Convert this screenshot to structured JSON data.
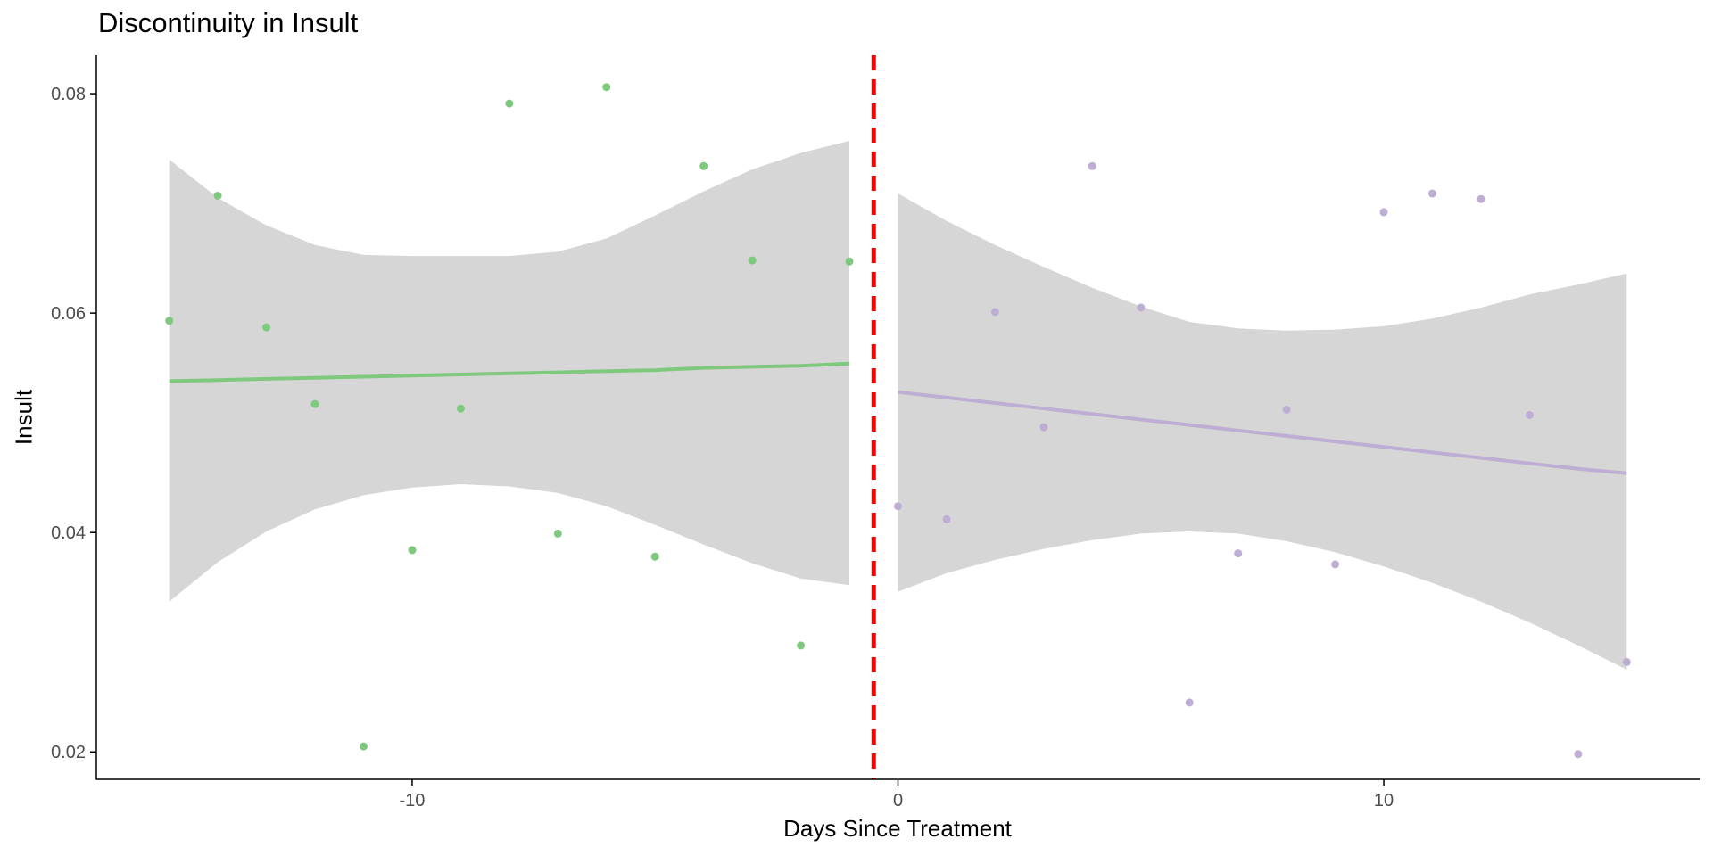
{
  "chart_data": {
    "type": "scatter",
    "title": "Discontinuity in Insult",
    "xlabel": "Days Since Treatment",
    "ylabel": "Insult",
    "xlim": [
      -16.5,
      16.5
    ],
    "ylim": [
      0.0175,
      0.0835
    ],
    "x_ticks": [
      -10,
      0,
      10
    ],
    "x_tick_labels": [
      "-10",
      "0",
      "10"
    ],
    "y_ticks": [
      0.02,
      0.04,
      0.06,
      0.08
    ],
    "y_tick_labels": [
      "0.02",
      "0.04",
      "0.06",
      "0.08"
    ],
    "grid": false,
    "cutoff": {
      "x": -0.5,
      "color": "#ff0000",
      "style": "dashed"
    },
    "series": [
      {
        "color": "#7fc97f",
        "x": [
          -15,
          -14,
          -13,
          -12,
          -11,
          -10,
          -9,
          -8,
          -7,
          -6,
          -5,
          -4,
          -3,
          -2,
          -1
        ],
        "y": [
          0.0593,
          0.0707,
          0.0587,
          0.0517,
          0.0205,
          0.0384,
          0.0513,
          0.0791,
          0.0399,
          0.0806,
          0.0378,
          0.0734,
          0.0648,
          0.0297,
          0.0647
        ],
        "fit": {
          "x": [
            -15,
            -14,
            -13,
            -12,
            -11,
            -10,
            -9,
            -8,
            -7,
            -6,
            -5,
            -4,
            -3,
            -2,
            -1
          ],
          "y": [
            0.0538,
            0.0539,
            0.054,
            0.0541,
            0.0542,
            0.0543,
            0.0544,
            0.0545,
            0.0546,
            0.0547,
            0.0548,
            0.055,
            0.0551,
            0.0552,
            0.0554
          ],
          "lower": [
            0.0337,
            0.0373,
            0.0401,
            0.0421,
            0.0434,
            0.0441,
            0.0444,
            0.0442,
            0.0436,
            0.0424,
            0.0407,
            0.0389,
            0.0372,
            0.0358,
            0.0352
          ],
          "upper": [
            0.074,
            0.0705,
            0.068,
            0.0662,
            0.0653,
            0.0652,
            0.0652,
            0.0652,
            0.0656,
            0.0668,
            0.0689,
            0.0711,
            0.0731,
            0.0746,
            0.0757
          ]
        }
      },
      {
        "color": "#beaed4",
        "x": [
          0,
          1,
          2,
          3,
          4,
          5,
          6,
          7,
          8,
          9,
          10,
          11,
          12,
          13,
          14,
          15
        ],
        "y": [
          0.0424,
          0.0412,
          0.0601,
          0.0496,
          0.0734,
          0.0605,
          0.0245,
          0.0381,
          0.0512,
          0.0371,
          0.0692,
          0.0709,
          0.0704,
          0.0507,
          0.0198,
          0.0282
        ],
        "fit": {
          "x": [
            0,
            1,
            2,
            3,
            4,
            5,
            6,
            7,
            8,
            9,
            10,
            11,
            12,
            13,
            14,
            15
          ],
          "y": [
            0.0528,
            0.0523,
            0.0518,
            0.0513,
            0.0508,
            0.0503,
            0.0498,
            0.0493,
            0.0488,
            0.0483,
            0.0478,
            0.0473,
            0.0468,
            0.0463,
            0.0458,
            0.0454
          ],
          "lower": [
            0.0346,
            0.0363,
            0.0375,
            0.0385,
            0.0393,
            0.0399,
            0.0401,
            0.0399,
            0.0392,
            0.0382,
            0.0369,
            0.0354,
            0.0337,
            0.0318,
            0.0297,
            0.0275
          ],
          "upper": [
            0.0709,
            0.0684,
            0.0662,
            0.0642,
            0.0623,
            0.0606,
            0.0592,
            0.0586,
            0.0584,
            0.0585,
            0.0588,
            0.0595,
            0.0605,
            0.0617,
            0.0626,
            0.0636
          ]
        }
      }
    ]
  },
  "colors": {
    "ribbon": "#d6d6d6",
    "axis": "#000000",
    "tick_text": "#4d4d4d"
  }
}
